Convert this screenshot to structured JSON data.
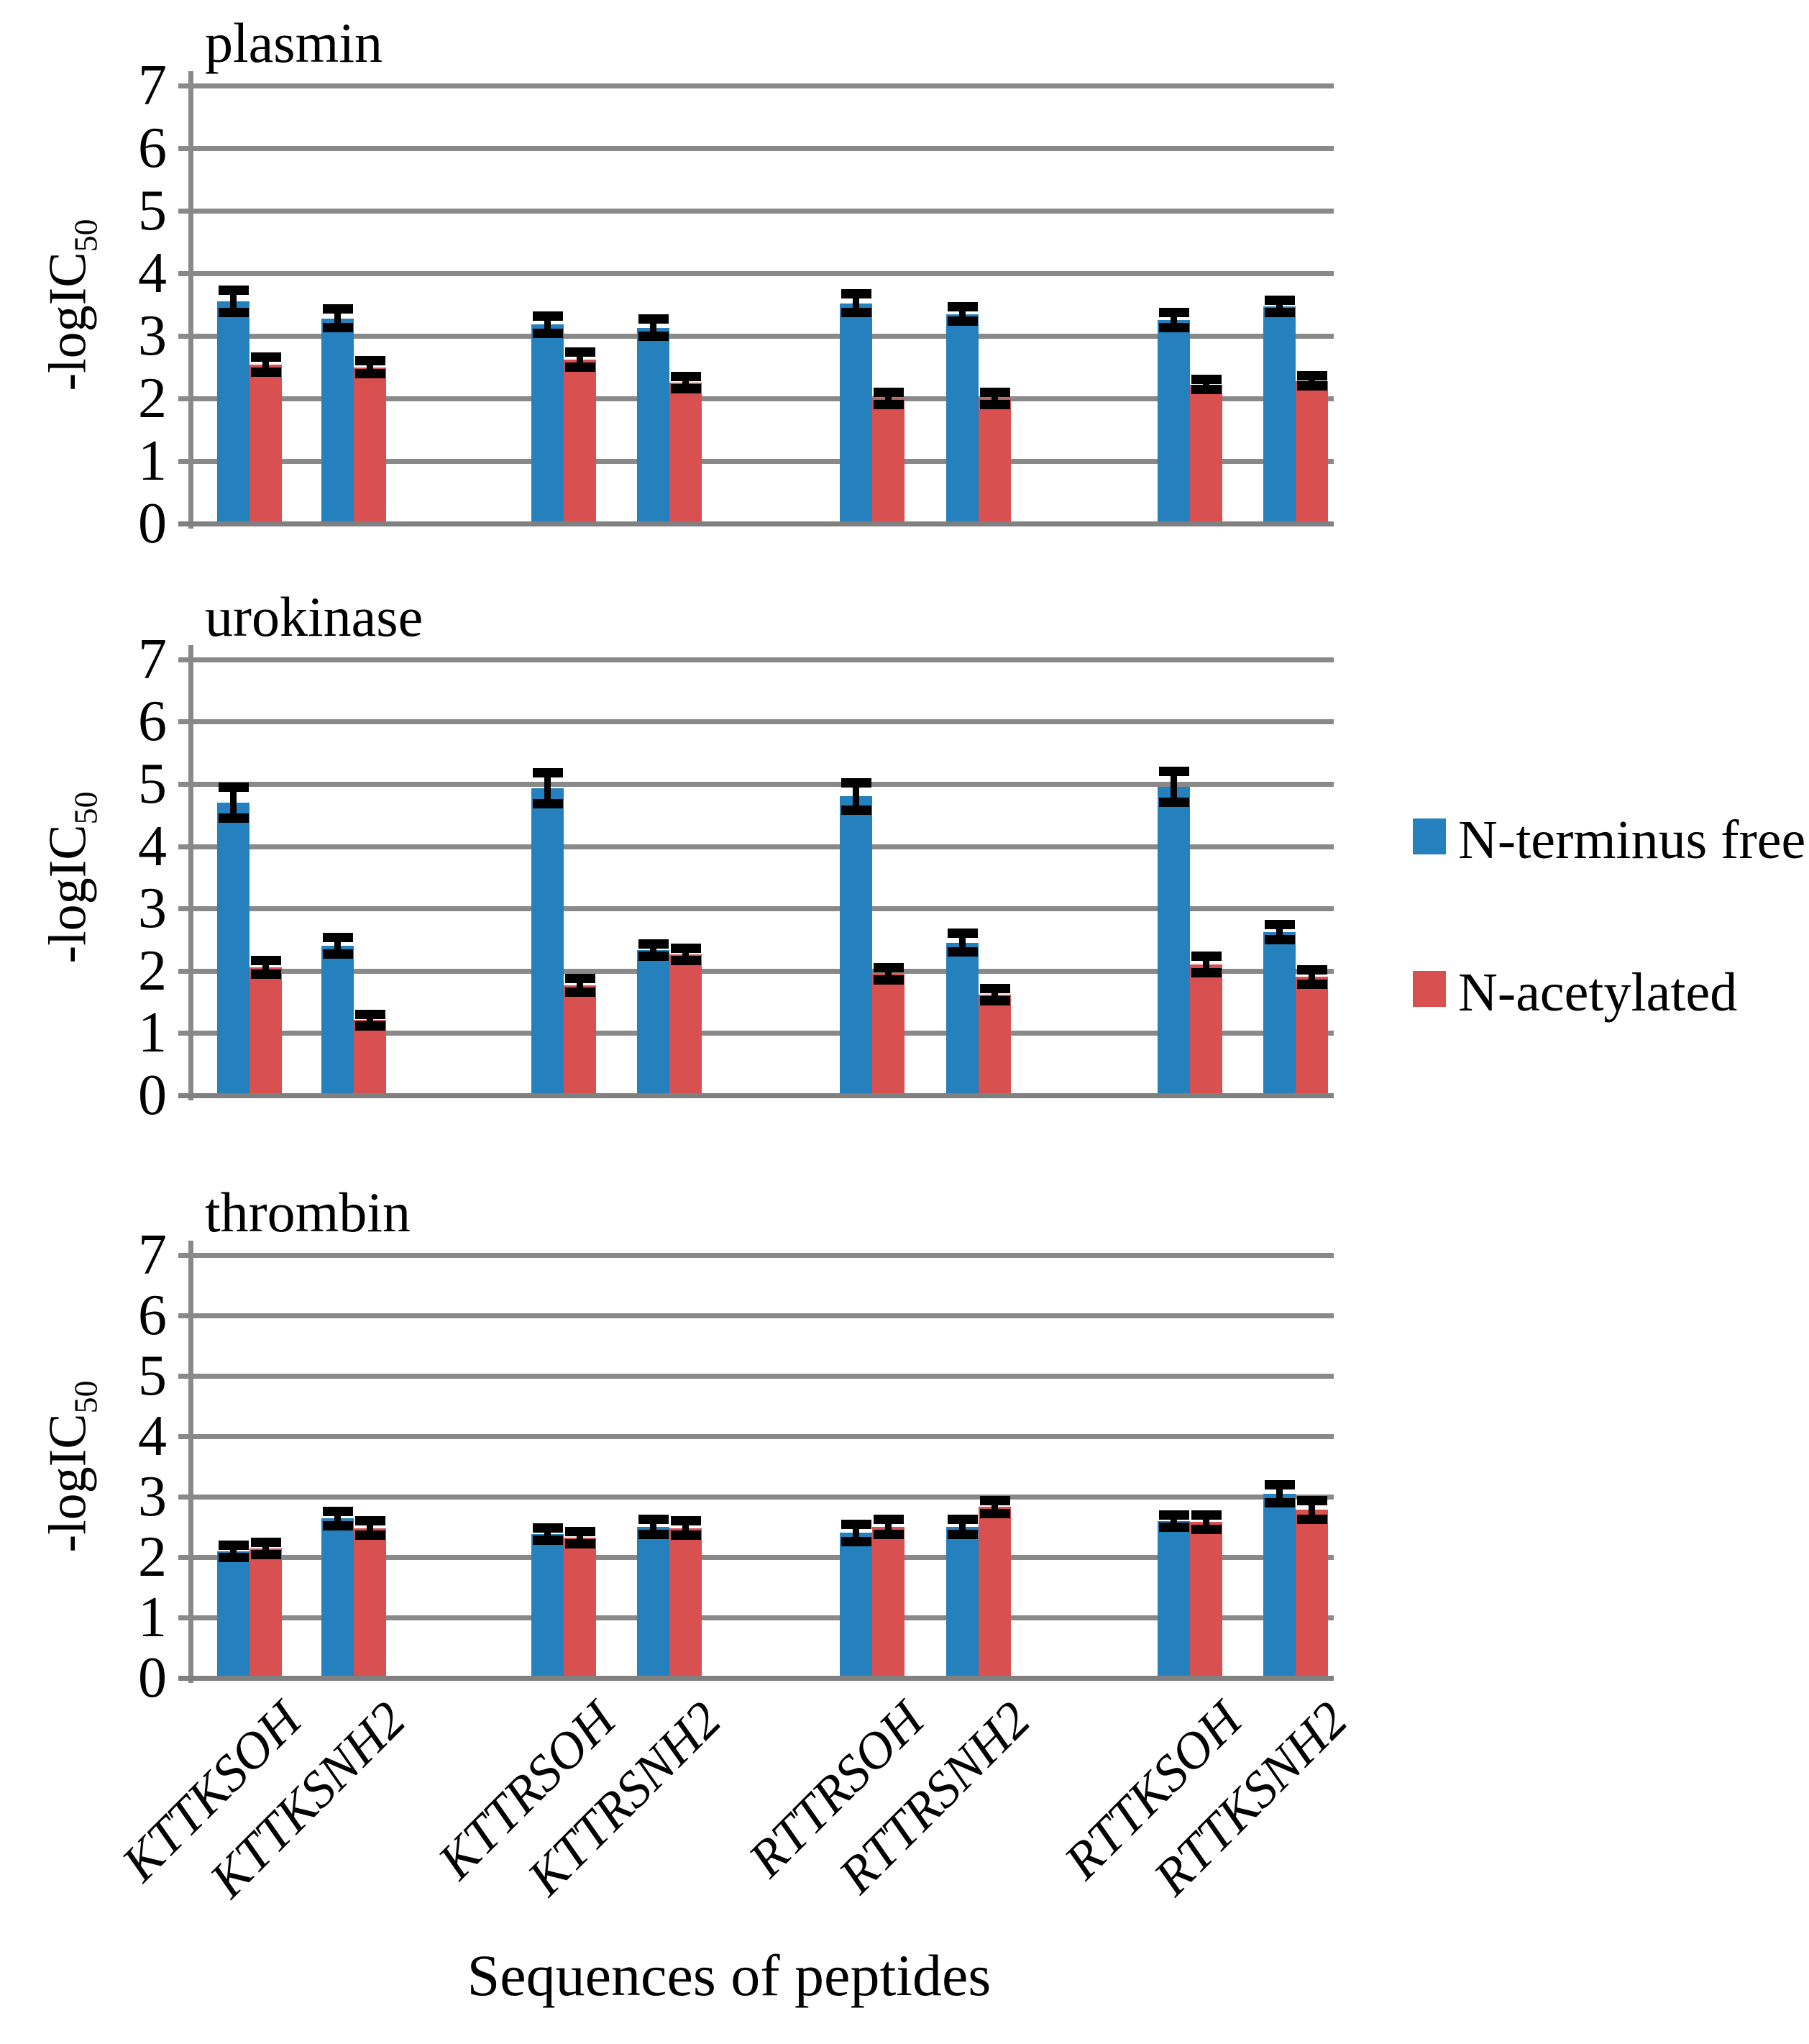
{
  "figure": {
    "background_color": "#FFFFFF",
    "text_color": "#000000",
    "gridline_color": "#898989",
    "axis_color": "#808080",
    "error_bar_color": "#000000",
    "series_colors": [
      "#2581BD",
      "#D95050"
    ],
    "y_axis_label": {
      "prefix": "-logIC",
      "subscript": "50"
    },
    "x_axis_title": "Sequences of peptides",
    "legend": {
      "position": "right",
      "items": [
        {
          "label": "N-terminus free",
          "color": "#2581BD"
        },
        {
          "label": "N-acetylated",
          "color": "#D95050"
        }
      ]
    }
  },
  "chart_data": [
    {
      "type": "bar",
      "title": "plasmin",
      "xlabel": "Sequences of peptides",
      "ylabel": "-logIC50",
      "ylim": [
        0,
        7
      ],
      "yticks": [
        0,
        1,
        2,
        3,
        4,
        5,
        6,
        7
      ],
      "grid": true,
      "categories": [
        "KTTKSOH",
        "KTTKSNH2",
        "KTTRSOH",
        "KTTRSNH2",
        "RTTRSOH",
        "RTTRSNH2",
        "RTTKSOH",
        "RTTKSNH2"
      ],
      "series": [
        {
          "name": "N-terminus free",
          "values": [
            3.55,
            3.28,
            3.18,
            3.13,
            3.52,
            3.35,
            3.25,
            3.47
          ],
          "errors": [
            0.18,
            0.15,
            0.14,
            0.14,
            0.15,
            0.12,
            0.12,
            0.1
          ]
        },
        {
          "name": "N-acetylated",
          "values": [
            2.54,
            2.5,
            2.62,
            2.25,
            2.0,
            2.0,
            2.22,
            2.28
          ],
          "errors": [
            0.12,
            0.1,
            0.12,
            0.1,
            0.1,
            0.1,
            0.08,
            0.08
          ]
        }
      ]
    },
    {
      "type": "bar",
      "title": "urokinase",
      "xlabel": "Sequences of peptides",
      "ylabel": "-logIC50",
      "ylim": [
        0,
        7
      ],
      "yticks": [
        0,
        1,
        2,
        3,
        4,
        5,
        6,
        7
      ],
      "grid": true,
      "categories": [
        "KTTKSOH",
        "KTTKSNH2",
        "KTTRSOH",
        "KTTRSNH2",
        "RTTRSOH",
        "RTTRSNH2",
        "RTTKSOH",
        "RTTKSNH2"
      ],
      "series": [
        {
          "name": "N-terminus free",
          "values": [
            4.7,
            2.4,
            4.93,
            2.33,
            4.8,
            2.45,
            4.95,
            2.62
          ],
          "errors": [
            0.25,
            0.13,
            0.25,
            0.1,
            0.22,
            0.15,
            0.25,
            0.12
          ]
        },
        {
          "name": "N-acetylated",
          "values": [
            2.05,
            1.21,
            1.77,
            2.26,
            1.95,
            1.62,
            2.1,
            1.9
          ],
          "errors": [
            0.11,
            0.09,
            0.11,
            0.1,
            0.1,
            0.1,
            0.13,
            0.12
          ]
        }
      ]
    },
    {
      "type": "bar",
      "title": "thrombin",
      "xlabel": "Sequences of peptides",
      "ylabel": "-logIC50",
      "ylim": [
        0,
        7
      ],
      "yticks": [
        0,
        1,
        2,
        3,
        4,
        5,
        6,
        7
      ],
      "grid": true,
      "categories": [
        "KTTKSOH",
        "KTTKSNH2",
        "KTTRSOH",
        "KTTRSNH2",
        "RTTRSOH",
        "RTTRSNH2",
        "RTTKSOH",
        "RTTKSNH2"
      ],
      "series": [
        {
          "name": "N-terminus free",
          "values": [
            2.1,
            2.64,
            2.38,
            2.5,
            2.4,
            2.5,
            2.6,
            3.05
          ],
          "errors": [
            0.1,
            0.12,
            0.1,
            0.12,
            0.14,
            0.12,
            0.1,
            0.15
          ]
        },
        {
          "name": "N-acetylated",
          "values": [
            2.14,
            2.48,
            2.32,
            2.48,
            2.5,
            2.83,
            2.58,
            2.78
          ],
          "errors": [
            0.1,
            0.12,
            0.1,
            0.12,
            0.12,
            0.11,
            0.12,
            0.15
          ]
        }
      ]
    }
  ]
}
